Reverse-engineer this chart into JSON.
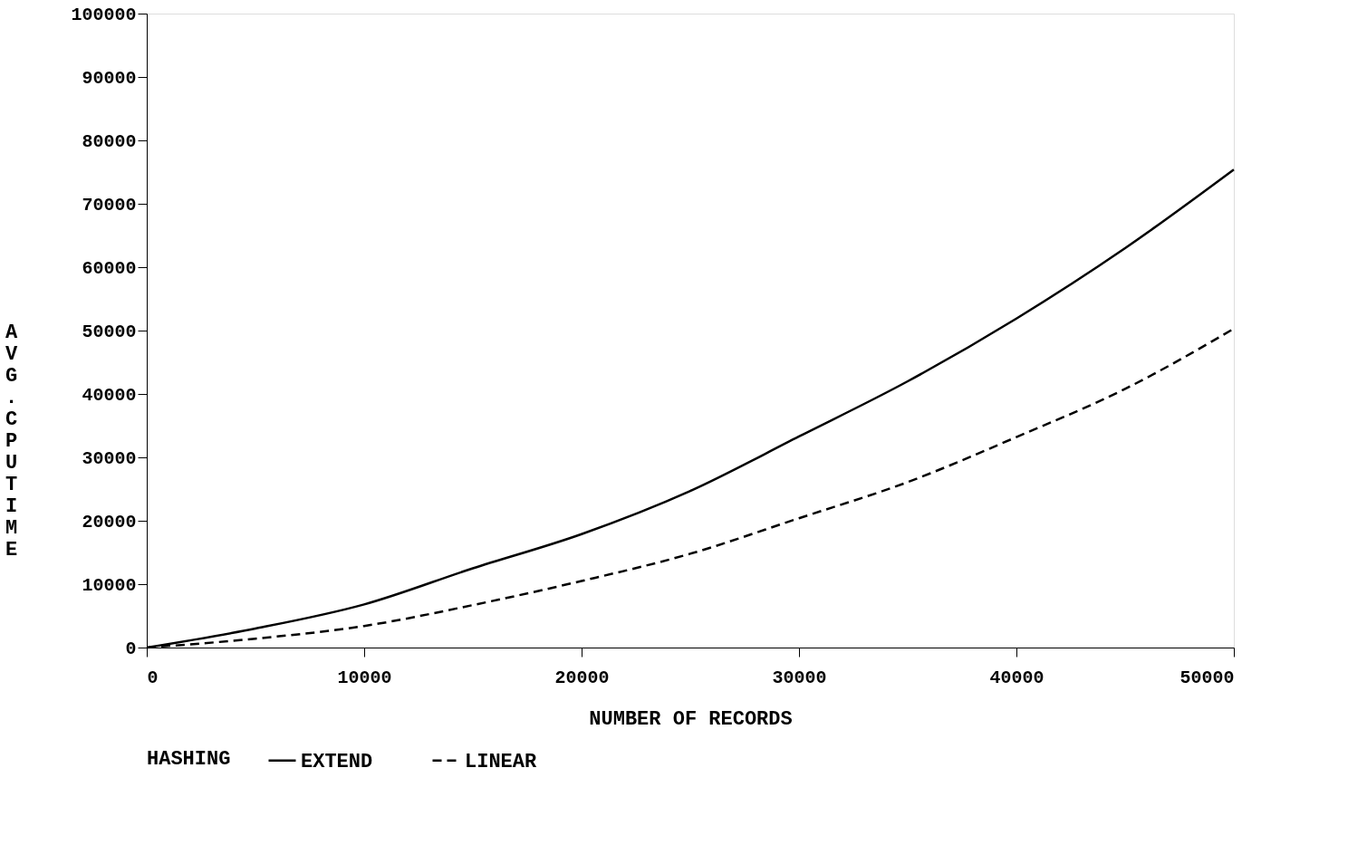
{
  "chart_data": {
    "type": "line",
    "xlabel": "NUMBER OF RECORDS",
    "ylabel": "AVG. CPU TIME",
    "legend_title": "HASHING",
    "x": [
      0,
      5000,
      10000,
      15000,
      20000,
      25000,
      30000,
      35000,
      40000,
      45000,
      50000
    ],
    "series": [
      {
        "name": "EXTEND",
        "color": "#000000",
        "line_style": "solid",
        "values": [
          0,
          3000,
          6800,
          12500,
          17900,
          24700,
          33300,
          42000,
          51900,
          63000,
          75400
        ]
      },
      {
        "name": "LINEAR",
        "color": "#000000",
        "line_style": "dashed",
        "values": [
          0,
          1400,
          3400,
          6700,
          10500,
          14800,
          20400,
          26100,
          33200,
          40800,
          50300
        ]
      }
    ],
    "xlim": [
      0,
      50000
    ],
    "xticks": [
      0,
      10000,
      20000,
      30000,
      40000,
      50000
    ],
    "ylim": [
      0,
      100000
    ],
    "yticks": [
      0,
      10000,
      20000,
      30000,
      40000,
      50000,
      60000,
      70000,
      80000,
      90000,
      100000
    ],
    "grid": false,
    "legend": "bottom",
    "marker": "none"
  }
}
